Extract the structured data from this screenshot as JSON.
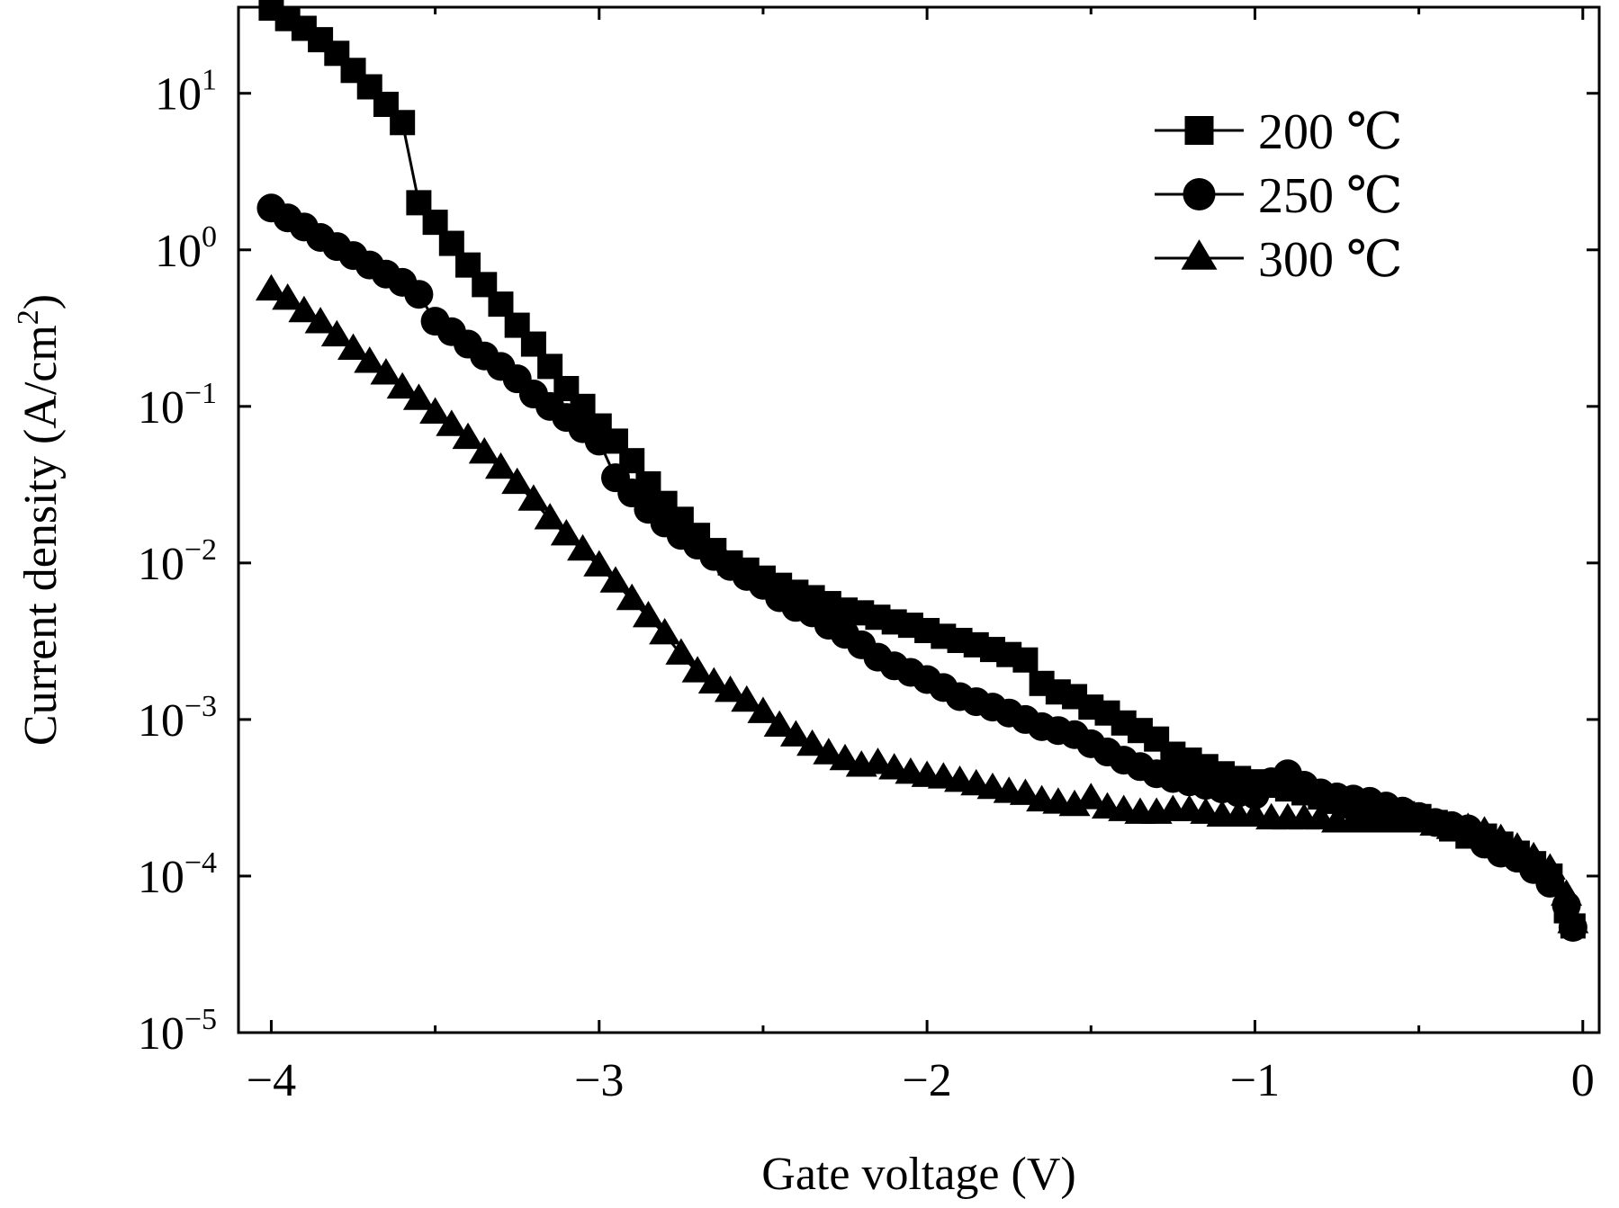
{
  "chart_data": {
    "type": "scatter",
    "xlabel": "Gate voltage (V)",
    "ylabel": "Current density (A/cm²)",
    "xlim": [
      -4.1,
      0.05
    ],
    "ylim_log10": [
      -5,
      1.55
    ],
    "y_scale": "log",
    "x_ticks": [
      {
        "value": -4,
        "label": "−4"
      },
      {
        "value": -3,
        "label": "−3"
      },
      {
        "value": -2,
        "label": "−2"
      },
      {
        "value": -1,
        "label": "−1"
      },
      {
        "value": 0,
        "label": "0"
      }
    ],
    "y_ticks": [
      {
        "exp": 1,
        "label": "10",
        "sup": "1"
      },
      {
        "exp": 0,
        "label": "10",
        "sup": "0"
      },
      {
        "exp": -1,
        "label": "10",
        "sup": "−1"
      },
      {
        "exp": -2,
        "label": "10",
        "sup": "−2"
      },
      {
        "exp": -3,
        "label": "10",
        "sup": "−3"
      },
      {
        "exp": -4,
        "label": "10",
        "sup": "−4"
      },
      {
        "exp": -5,
        "label": "10",
        "sup": "−5"
      }
    ],
    "grid": false,
    "legend_position": "top-right",
    "series": [
      {
        "name": "200 ℃",
        "marker": "square",
        "x": [
          -4.0,
          -3.95,
          -3.9,
          -3.85,
          -3.8,
          -3.75,
          -3.7,
          -3.65,
          -3.6,
          -3.55,
          -3.5,
          -3.45,
          -3.4,
          -3.35,
          -3.3,
          -3.25,
          -3.2,
          -3.15,
          -3.1,
          -3.05,
          -3.0,
          -2.95,
          -2.9,
          -2.85,
          -2.8,
          -2.75,
          -2.7,
          -2.65,
          -2.6,
          -2.55,
          -2.5,
          -2.45,
          -2.4,
          -2.35,
          -2.3,
          -2.25,
          -2.2,
          -2.15,
          -2.1,
          -2.05,
          -2.0,
          -1.95,
          -1.9,
          -1.85,
          -1.8,
          -1.75,
          -1.7,
          -1.65,
          -1.6,
          -1.55,
          -1.5,
          -1.45,
          -1.4,
          -1.35,
          -1.3,
          -1.25,
          -1.2,
          -1.15,
          -1.1,
          -1.05,
          -1.0,
          -0.95,
          -0.9,
          -0.85,
          -0.8,
          -0.75,
          -0.7,
          -0.65,
          -0.6,
          -0.55,
          -0.5,
          -0.45,
          -0.4,
          -0.35,
          -0.3,
          -0.25,
          -0.2,
          -0.15,
          -0.1,
          -0.05,
          -0.03
        ],
        "y": [
          35,
          30,
          26,
          22,
          18,
          14,
          11,
          8.5,
          6.5,
          2.0,
          1.5,
          1.1,
          0.8,
          0.6,
          0.45,
          0.33,
          0.25,
          0.18,
          0.13,
          0.1,
          0.075,
          0.06,
          0.045,
          0.032,
          0.024,
          0.019,
          0.015,
          0.012,
          0.01,
          0.009,
          0.008,
          0.0072,
          0.0065,
          0.006,
          0.0055,
          0.005,
          0.0048,
          0.0045,
          0.0042,
          0.004,
          0.0037,
          0.0034,
          0.0032,
          0.003,
          0.0028,
          0.0026,
          0.0024,
          0.0017,
          0.0015,
          0.0014,
          0.0012,
          0.0011,
          0.00095,
          0.00085,
          0.00075,
          0.0006,
          0.00055,
          0.0005,
          0.00045,
          0.00042,
          0.0004,
          0.00038,
          0.00036,
          0.00034,
          0.00032,
          0.0003,
          0.00028,
          0.00027,
          0.00026,
          0.00025,
          0.00024,
          0.00022,
          0.0002,
          0.00018,
          0.00018,
          0.00016,
          0.00014,
          0.00012,
          0.0001,
          6e-05,
          4.8e-05
        ]
      },
      {
        "name": "250 ℃",
        "marker": "circle",
        "x": [
          -4.0,
          -3.95,
          -3.9,
          -3.85,
          -3.8,
          -3.75,
          -3.7,
          -3.65,
          -3.6,
          -3.55,
          -3.5,
          -3.45,
          -3.4,
          -3.35,
          -3.3,
          -3.25,
          -3.2,
          -3.15,
          -3.1,
          -3.05,
          -3.0,
          -2.95,
          -2.9,
          -2.85,
          -2.8,
          -2.75,
          -2.7,
          -2.65,
          -2.6,
          -2.55,
          -2.5,
          -2.45,
          -2.4,
          -2.35,
          -2.3,
          -2.25,
          -2.2,
          -2.15,
          -2.1,
          -2.05,
          -2.0,
          -1.95,
          -1.9,
          -1.85,
          -1.8,
          -1.75,
          -1.7,
          -1.65,
          -1.6,
          -1.55,
          -1.5,
          -1.45,
          -1.4,
          -1.35,
          -1.3,
          -1.25,
          -1.2,
          -1.15,
          -1.1,
          -1.05,
          -1.0,
          -0.95,
          -0.9,
          -0.85,
          -0.8,
          -0.75,
          -0.7,
          -0.65,
          -0.6,
          -0.55,
          -0.5,
          -0.45,
          -0.4,
          -0.35,
          -0.3,
          -0.25,
          -0.2,
          -0.15,
          -0.1,
          -0.05,
          -0.03
        ],
        "y": [
          1.85,
          1.6,
          1.4,
          1.2,
          1.05,
          0.92,
          0.8,
          0.7,
          0.62,
          0.52,
          0.35,
          0.3,
          0.25,
          0.21,
          0.18,
          0.15,
          0.12,
          0.1,
          0.085,
          0.072,
          0.06,
          0.035,
          0.028,
          0.022,
          0.018,
          0.015,
          0.013,
          0.011,
          0.0095,
          0.0082,
          0.0072,
          0.006,
          0.0052,
          0.0048,
          0.004,
          0.0035,
          0.003,
          0.0025,
          0.0022,
          0.002,
          0.0018,
          0.0016,
          0.0014,
          0.0013,
          0.0012,
          0.0011,
          0.001,
          0.0009,
          0.00085,
          0.0008,
          0.0007,
          0.00062,
          0.00055,
          0.0005,
          0.00045,
          0.00042,
          0.0004,
          0.00038,
          0.00036,
          0.00034,
          0.00033,
          0.0004,
          0.00045,
          0.00038,
          0.00034,
          0.00032,
          0.00031,
          0.0003,
          0.00028,
          0.00026,
          0.00024,
          0.00022,
          0.00021,
          0.0002,
          0.00016,
          0.00014,
          0.00013,
          0.00011,
          9e-05,
          6.5e-05,
          4.7e-05
        ]
      },
      {
        "name": "300 ℃",
        "marker": "triangle",
        "x": [
          -4.0,
          -3.95,
          -3.9,
          -3.85,
          -3.8,
          -3.75,
          -3.7,
          -3.65,
          -3.6,
          -3.55,
          -3.5,
          -3.45,
          -3.4,
          -3.35,
          -3.3,
          -3.25,
          -3.2,
          -3.15,
          -3.1,
          -3.05,
          -3.0,
          -2.95,
          -2.9,
          -2.85,
          -2.8,
          -2.75,
          -2.7,
          -2.65,
          -2.6,
          -2.55,
          -2.5,
          -2.45,
          -2.4,
          -2.35,
          -2.3,
          -2.25,
          -2.2,
          -2.15,
          -2.1,
          -2.05,
          -2.0,
          -1.95,
          -1.9,
          -1.85,
          -1.8,
          -1.75,
          -1.7,
          -1.65,
          -1.6,
          -1.55,
          -1.5,
          -1.45,
          -1.4,
          -1.35,
          -1.3,
          -1.25,
          -1.2,
          -1.15,
          -1.1,
          -1.05,
          -1.0,
          -0.95,
          -0.9,
          -0.85,
          -0.8,
          -0.75,
          -0.7,
          -0.65,
          -0.6,
          -0.55,
          -0.5,
          -0.45,
          -0.4,
          -0.35,
          -0.3,
          -0.25,
          -0.2,
          -0.15,
          -0.1,
          -0.05,
          -0.03
        ],
        "y": [
          0.55,
          0.48,
          0.4,
          0.34,
          0.28,
          0.23,
          0.19,
          0.16,
          0.13,
          0.11,
          0.09,
          0.075,
          0.062,
          0.05,
          0.04,
          0.032,
          0.025,
          0.019,
          0.015,
          0.012,
          0.0095,
          0.0075,
          0.0058,
          0.0045,
          0.0035,
          0.0026,
          0.002,
          0.0017,
          0.0015,
          0.0013,
          0.0011,
          0.0009,
          0.00078,
          0.00068,
          0.0006,
          0.00055,
          0.0005,
          0.00052,
          0.00048,
          0.00045,
          0.00043,
          0.00042,
          0.0004,
          0.00038,
          0.00036,
          0.00034,
          0.00033,
          0.0003,
          0.00029,
          0.00028,
          0.00031,
          0.00027,
          0.00026,
          0.00025,
          0.00025,
          0.00026,
          0.00026,
          0.00025,
          0.00024,
          0.00024,
          0.00024,
          0.00023,
          0.00023,
          0.00023,
          0.00023,
          0.00022,
          0.00022,
          0.00022,
          0.00022,
          0.00022,
          0.00022,
          0.00021,
          0.0002,
          0.0002,
          0.00019,
          0.00017,
          0.00015,
          0.00013,
          0.00011,
          7.5e-05,
          5e-05
        ]
      }
    ]
  }
}
